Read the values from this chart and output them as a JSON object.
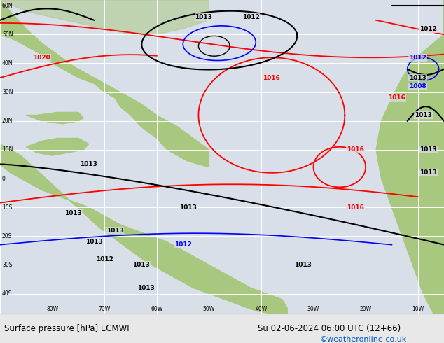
{
  "title": "Surface pressure [hPa] ECMWF",
  "date_str": "Su 02-06-2024 06:00 UTC (12+66)",
  "watermark": "©weatheronline.co.uk",
  "ocean_color": "#d8dfe8",
  "land_color": "#a8c880",
  "grid_color": "#ffffff",
  "bottom_bg": "#e8e8e8",
  "watermark_color": "#0055cc",
  "lon_min": -90,
  "lon_max": -5,
  "lat_min": -47,
  "lat_max": 62
}
